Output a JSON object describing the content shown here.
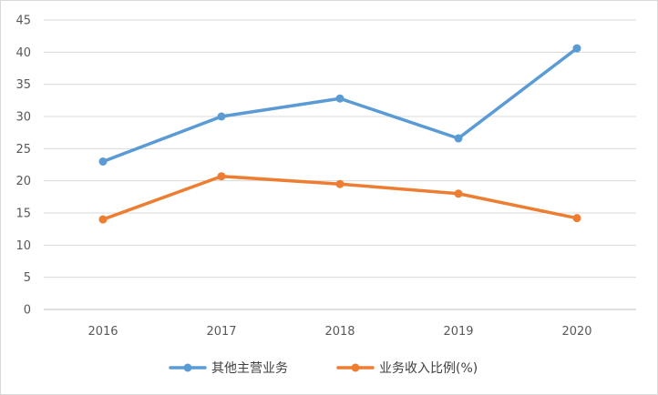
{
  "chart_data": {
    "type": "line",
    "title": "",
    "xlabel": "",
    "ylabel": "",
    "categories": [
      "2016",
      "2017",
      "2018",
      "2019",
      "2020"
    ],
    "ylim": [
      0,
      45
    ],
    "yticks": [
      0,
      5,
      10,
      15,
      20,
      25,
      30,
      35,
      40,
      45
    ],
    "grid": "horizontal",
    "legend_position": "bottom",
    "series": [
      {
        "name": "其他主营业务",
        "color": "#5b9bd5",
        "values": [
          23.0,
          30.0,
          32.8,
          26.6,
          40.6
        ]
      },
      {
        "name": "业务收入比例(%)",
        "color": "#ed7d31",
        "values": [
          14.0,
          20.7,
          19.5,
          18.0,
          14.2
        ]
      }
    ]
  }
}
